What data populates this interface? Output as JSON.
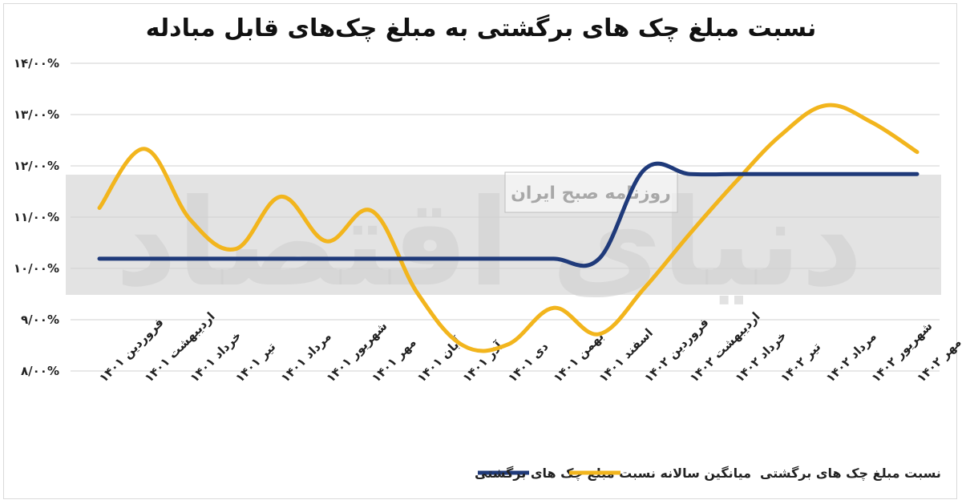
{
  "chart_data": {
    "type": "line",
    "title": "نسبت مبلغ چک های برگشتی به مبلغ چک‌های قابل مبادله",
    "categories": [
      "فروردین ۱۴۰۱",
      "اردیبهشت ۱۴۰۱",
      "خرداد ۱۴۰۱",
      "تیر ۱۴۰۱",
      "مرداد ۱۴۰۱",
      "شهریور ۱۴۰۱",
      "مهر ۱۴۰۱",
      "آبان ۱۴۰۱",
      "آذر ۱۴۰۱",
      "دی ۱۴۰۱",
      "بهمن ۱۴۰۱",
      "اسفند ۱۴۰۱",
      "فروردین ۱۴۰۲",
      "اردیبهشت ۱۴۰۲",
      "خرداد ۱۴۰۲",
      "تیر ۱۴۰۲",
      "مرداد ۱۴۰۲",
      "شهریور ۱۴۰۲",
      "مهر ۱۴۰۲"
    ],
    "series": [
      {
        "name": "میانگین سالانه نسبت مبلغ چک های برگشتی",
        "color": "#1f3a7a",
        "values": [
          10.19,
          10.19,
          10.19,
          10.19,
          10.19,
          10.19,
          10.19,
          10.19,
          10.19,
          10.19,
          10.19,
          10.19,
          11.93,
          11.84,
          11.84,
          11.84,
          11.84,
          11.84,
          11.84
        ]
      },
      {
        "name": "نسبت مبلغ چک های برگشتی",
        "color": "#f2b51d",
        "values": [
          11.18,
          12.33,
          10.95,
          10.38,
          11.4,
          10.53,
          11.12,
          9.52,
          8.5,
          8.52,
          9.23,
          8.72,
          9.62,
          10.68,
          11.68,
          12.6,
          13.18,
          12.85,
          12.27
        ]
      }
    ],
    "y_ticks": [
      "۱۴/۰۰%",
      "۱۳/۰۰%",
      "۱۲/۰۰%",
      "۱۱/۰۰%",
      "۱۰/۰۰%",
      "۹/۰۰%",
      "۸/۰۰%"
    ],
    "ylim": [
      8,
      14
    ],
    "grid": true,
    "legend": "bottom"
  },
  "watermark": {
    "label": "روزنامه صبح ایران",
    "script": "دنیای اقتصاد"
  }
}
